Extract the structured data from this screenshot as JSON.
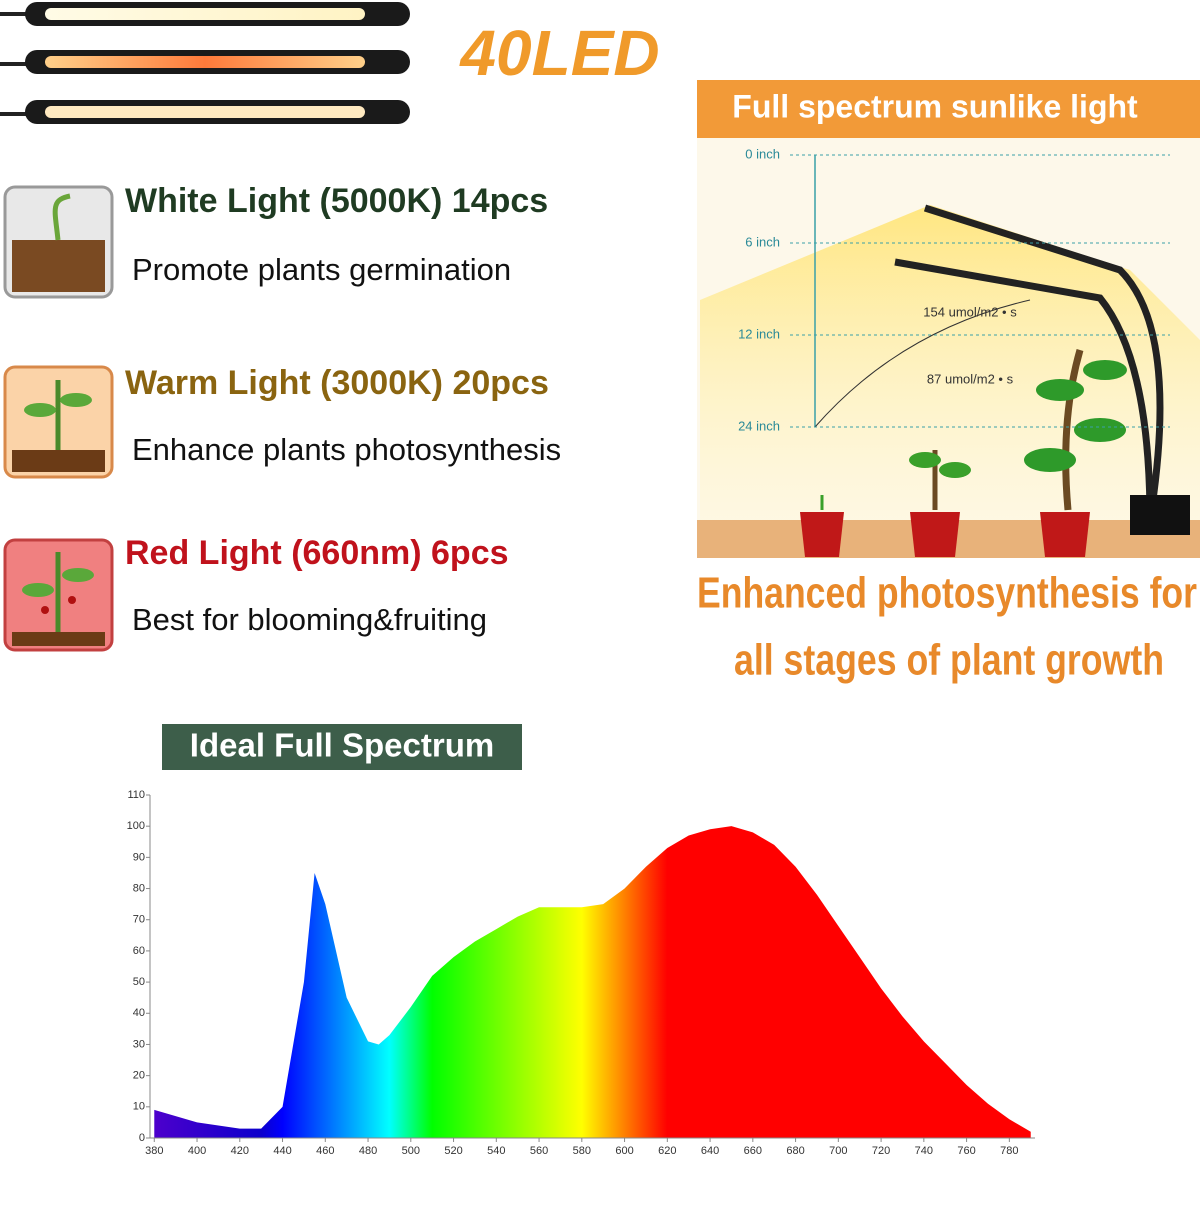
{
  "header": {
    "badge": "40LED"
  },
  "features": [
    {
      "title": "White Light (5000K) 14pcs",
      "text": "Promote plants germination",
      "color": "#1f3b22"
    },
    {
      "title": "Warm Light (3000K) 20pcs",
      "text": "Enhance plants photosynthesis",
      "color": "#8a6410"
    },
    {
      "title": "Red Light (660nm) 6pcs",
      "text": "Best for blooming&fruiting",
      "color": "#c0121c"
    }
  ],
  "panel": {
    "title": "Full spectrum sunlike light",
    "heights": [
      "0 inch",
      "6 inch",
      "12 inch",
      "24 inch"
    ],
    "ppfd": [
      "154 umol/m2 • s",
      "87 umol/m2 • s"
    ],
    "caption": [
      "Enhanced photosynthesis for",
      "all stages of plant growth"
    ]
  },
  "chart_data": {
    "type": "area",
    "title": "Ideal Full Spectrum",
    "x": [
      380,
      390,
      400,
      410,
      420,
      430,
      440,
      450,
      455,
      460,
      470,
      480,
      485,
      490,
      500,
      510,
      520,
      530,
      540,
      550,
      560,
      570,
      580,
      590,
      600,
      610,
      620,
      630,
      640,
      650,
      660,
      670,
      680,
      690,
      700,
      710,
      720,
      730,
      740,
      750,
      760,
      770,
      780,
      790
    ],
    "values": [
      9,
      7,
      5,
      4,
      3,
      3,
      10,
      50,
      85,
      75,
      45,
      31,
      30,
      33,
      42,
      52,
      58,
      63,
      67,
      71,
      74,
      74,
      74,
      75,
      80,
      87,
      93,
      97,
      99,
      100,
      98,
      94,
      87,
      78,
      68,
      58,
      48,
      39,
      31,
      24,
      17,
      11,
      6,
      2
    ],
    "xlim": [
      378,
      792
    ],
    "ylim": [
      0,
      110
    ],
    "xticks": [
      380,
      400,
      420,
      440,
      460,
      480,
      500,
      520,
      540,
      560,
      580,
      600,
      620,
      640,
      660,
      680,
      700,
      720,
      740,
      760,
      780
    ],
    "yticks": [
      0,
      10,
      20,
      30,
      40,
      50,
      60,
      70,
      80,
      90,
      100,
      110
    ]
  }
}
